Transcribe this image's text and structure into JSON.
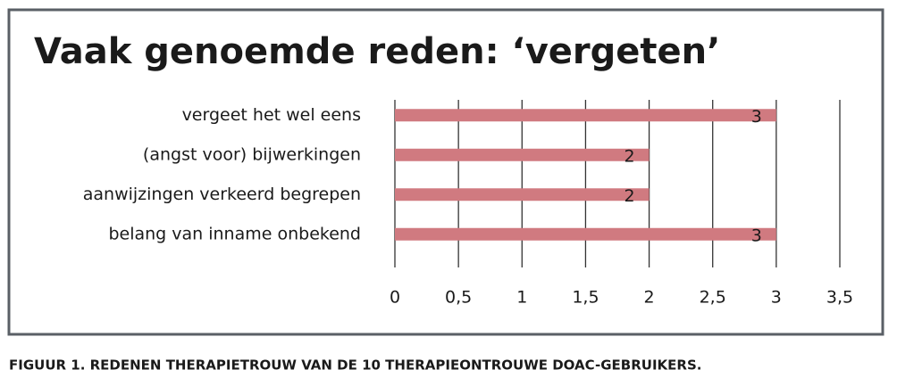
{
  "chart_data": {
    "type": "hbar",
    "title": "Vaak genoemde reden: ‘vergeten’",
    "categories": [
      "vergeet het wel eens",
      "(angst voor) bijwerkingen",
      "aanwijzingen verkeerd begrepen",
      "belang van inname onbekend"
    ],
    "values": [
      3,
      2,
      2,
      3
    ],
    "color": "#d07a80",
    "xlim": [
      0,
      3.5
    ],
    "xticks": [
      0,
      {
        "value": 0.5,
        "label": "0,5"
      },
      1,
      {
        "value": 1.5,
        "label": "1,5"
      },
      2,
      {
        "value": 2.5,
        "label": "2,5"
      },
      3,
      {
        "value": 3.5,
        "label": "3,5"
      }
    ],
    "grid": true,
    "caption": "FIGUUR 1. REDENEN THERAPIETROUW VAN DE 10 THERAPIEONTROUWE DOAC-GEBRUIKERS."
  }
}
